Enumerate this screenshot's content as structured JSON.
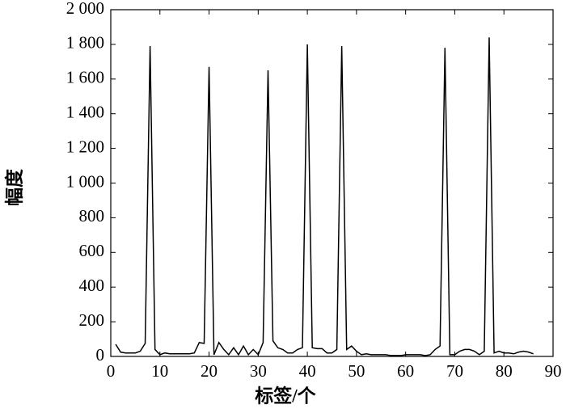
{
  "chart_data": {
    "type": "line",
    "x_label": "标签/个",
    "y_label": "幅度",
    "x": [
      1,
      2,
      3,
      4,
      5,
      6,
      7,
      8,
      9,
      10,
      11,
      12,
      13,
      14,
      15,
      16,
      17,
      18,
      19,
      20,
      21,
      22,
      23,
      24,
      25,
      26,
      27,
      28,
      29,
      30,
      31,
      32,
      33,
      34,
      35,
      36,
      37,
      38,
      39,
      40,
      41,
      42,
      43,
      44,
      45,
      46,
      47,
      48,
      49,
      50,
      51,
      52,
      53,
      54,
      55,
      56,
      57,
      58,
      59,
      60,
      61,
      62,
      63,
      64,
      65,
      66,
      67,
      68,
      69,
      70,
      71,
      72,
      73,
      74,
      75,
      76,
      77,
      78,
      79,
      80,
      81,
      82,
      83,
      84,
      85,
      86
    ],
    "series": [
      {
        "color": "#000000",
        "values": [
          70,
          25,
          20,
          20,
          20,
          30,
          75,
          1790,
          40,
          10,
          20,
          15,
          15,
          15,
          15,
          15,
          20,
          80,
          75,
          1670,
          10,
          80,
          40,
          10,
          50,
          10,
          60,
          10,
          40,
          10,
          80,
          1650,
          90,
          50,
          40,
          20,
          20,
          40,
          50,
          1800,
          50,
          45,
          45,
          20,
          20,
          40,
          1790,
          40,
          60,
          30,
          10,
          15,
          10,
          10,
          10,
          10,
          5,
          5,
          5,
          10,
          10,
          10,
          10,
          5,
          10,
          40,
          60,
          1780,
          10,
          10,
          30,
          40,
          40,
          30,
          10,
          30,
          1840,
          20,
          30,
          20,
          20,
          15,
          25,
          30,
          25,
          15
        ]
      }
    ],
    "xlim": [
      0,
      90
    ],
    "xticks": [
      0,
      10,
      20,
      30,
      40,
      50,
      60,
      70,
      80,
      90
    ],
    "ylim": [
      0,
      2000
    ],
    "yticks": [
      0,
      200,
      400,
      600,
      800,
      {
        "value": 1000,
        "label": "1 000"
      },
      {
        "value": 1200,
        "label": "1 200"
      },
      {
        "value": 1400,
        "label": "1 400"
      },
      {
        "value": 1600,
        "label": "1 600"
      },
      {
        "value": 1800,
        "label": "1 800"
      },
      {
        "value": 2000,
        "label": "2 000"
      }
    ]
  }
}
